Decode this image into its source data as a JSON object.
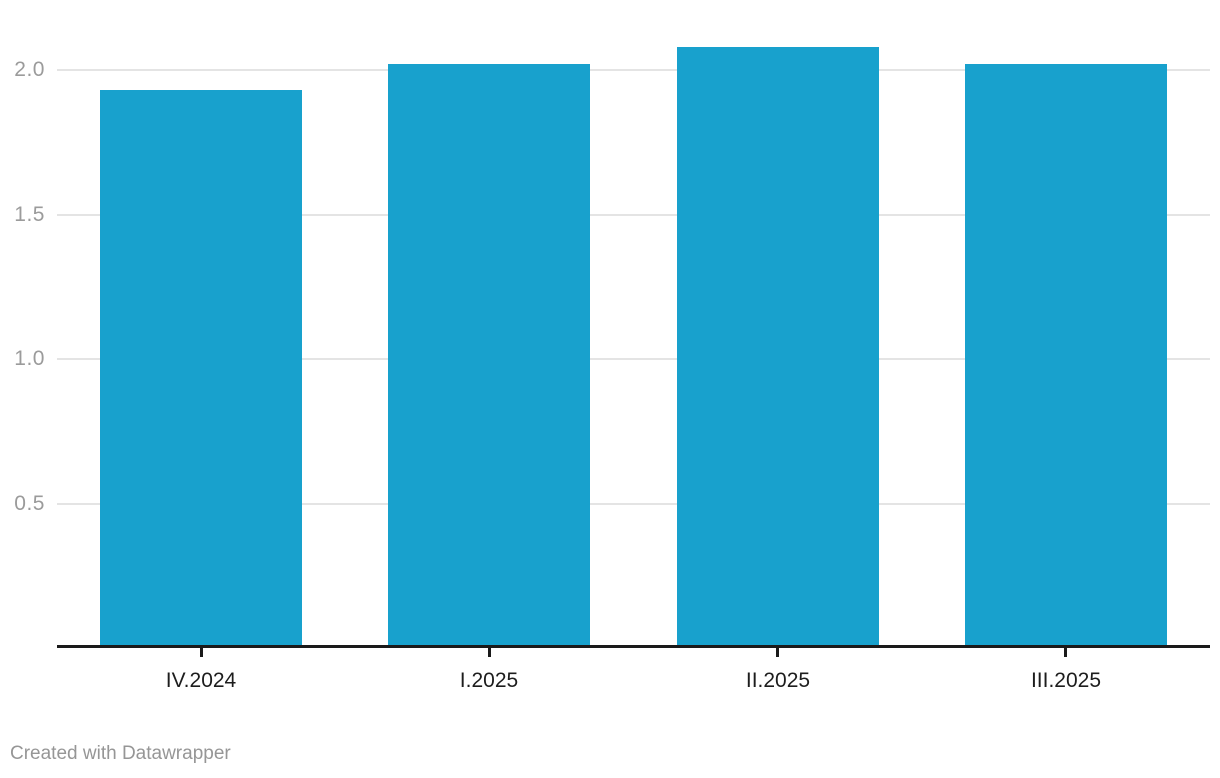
{
  "chart_data": {
    "type": "bar",
    "categories": [
      "IV.2024",
      "I.2025",
      "II.2025",
      "III.2025"
    ],
    "values": [
      1.93,
      2.02,
      2.08,
      2.02
    ],
    "title": "",
    "xlabel": "",
    "ylabel": "",
    "ylim": [
      0,
      2.15
    ],
    "yticks": [
      0.5,
      1.0,
      1.5,
      2.0
    ],
    "ytick_labels": [
      "0.5",
      "1.0",
      "1.5",
      "2.0"
    ],
    "grid": true,
    "legend": "none",
    "bar_color": "#18a1cd"
  },
  "footer": {
    "credit": "Created with Datawrapper"
  },
  "colors": {
    "bar": "#18a1cd",
    "grid": "#e4e4e4",
    "axis": "#1a1a1a",
    "tick_mark": "#1a1a1a",
    "y_tick_text": "#9b9b9b",
    "x_tick_text": "#1d1d1d",
    "credit_text": "#969696",
    "background": "#ffffff"
  }
}
